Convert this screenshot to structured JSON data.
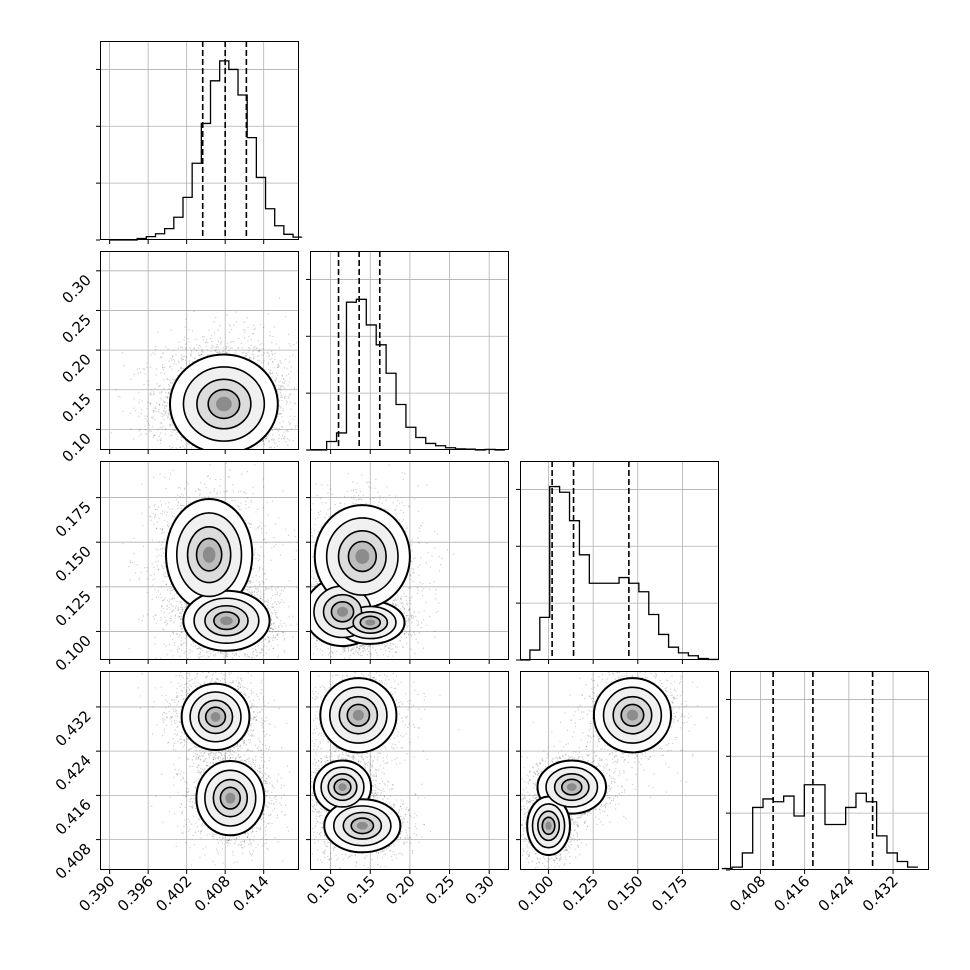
{
  "chart_data": {
    "type": "corner",
    "panels": [
      {
        "row": 0,
        "col": 0,
        "kind": "hist",
        "var": 0,
        "quantiles": [
          0.4045,
          0.408,
          0.4113
        ],
        "hist": {
          "range": [
            0.39,
            0.42
          ],
          "counts": [
            0,
            0,
            0,
            0.5,
            1.2,
            2.2,
            4,
            8,
            15,
            27,
            41,
            56,
            63,
            60,
            51,
            36,
            22,
            11,
            5,
            2,
            1
          ]
        }
      },
      {
        "row": 1,
        "col": 1,
        "kind": "hist",
        "var": 1,
        "quantiles": [
          0.11,
          0.136,
          0.162
        ],
        "hist": {
          "range": [
            0.07,
            0.32
          ],
          "counts": [
            0,
            0,
            3,
            6,
            52,
            53,
            44,
            37,
            27,
            16,
            8,
            4.4,
            2.3,
            1.5,
            0.8,
            0.4,
            0.3,
            0,
            0.2,
            0
          ]
        }
      },
      {
        "row": 2,
        "col": 2,
        "kind": "hist",
        "var": 2,
        "quantiles": [
          0.102,
          0.114,
          0.145
        ],
        "hist": {
          "range": [
            0.084,
            0.195
          ],
          "counts": [
            0,
            3.5,
            15,
            61,
            59,
            49,
            37,
            27,
            27,
            27,
            29,
            27,
            24,
            16,
            9,
            4.5,
            2.5,
            1.5,
            0.5,
            0.2
          ]
        }
      },
      {
        "row": 3,
        "col": 3,
        "kind": "hist",
        "var": 3,
        "quantiles": [
          0.4103,
          0.4175,
          0.4283
        ],
        "hist": {
          "range": [
            0.401,
            0.4365
          ],
          "counts": [
            0.5,
            1,
            6,
            22,
            25,
            24,
            26,
            19,
            30,
            30,
            16,
            16,
            22,
            27,
            24,
            12,
            6,
            3,
            1
          ]
        }
      },
      {
        "row": 1,
        "col": 0,
        "kind": "density",
        "x": 0,
        "y": 1
      },
      {
        "row": 2,
        "col": 0,
        "kind": "density",
        "x": 0,
        "y": 2
      },
      {
        "row": 2,
        "col": 1,
        "kind": "density",
        "x": 1,
        "y": 2
      },
      {
        "row": 3,
        "col": 0,
        "kind": "density",
        "x": 0,
        "y": 3
      },
      {
        "row": 3,
        "col": 1,
        "kind": "density",
        "x": 1,
        "y": 3
      },
      {
        "row": 3,
        "col": 2,
        "kind": "density",
        "x": 2,
        "y": 3
      }
    ],
    "axes": [
      {
        "name": "",
        "lim": [
          0.3885,
          0.4195
        ],
        "ticks": [
          0.39,
          0.396,
          0.402,
          0.408,
          0.414
        ],
        "tick_labels": [
          "0.390",
          "0.396",
          "0.402",
          "0.408",
          "0.414"
        ]
      },
      {
        "name": "",
        "lim": [
          0.074,
          0.325
        ],
        "ticks": [
          0.1,
          0.15,
          0.2,
          0.25,
          0.3
        ],
        "tick_labels": [
          "0.10",
          "0.15",
          "0.20",
          "0.25",
          "0.30"
        ]
      },
      {
        "name": "",
        "lim": [
          0.084,
          0.1955
        ],
        "ticks": [
          0.1,
          0.125,
          0.15,
          0.175
        ],
        "tick_labels": [
          "0.100",
          "0.125",
          "0.150",
          "0.175"
        ]
      },
      {
        "name": "",
        "lim": [
          0.4025,
          0.4385
        ],
        "ticks": [
          0.408,
          0.416,
          0.424,
          0.432
        ],
        "tick_labels": [
          "0.408",
          "0.416",
          "0.424",
          "0.432"
        ]
      }
    ],
    "hist_ylim": [
      0,
      70
    ],
    "grid": true,
    "contour_colors": {
      "line": "#000000",
      "fill_levels": [
        "#ffffff",
        "#f0f0f0",
        "#dcdcdc",
        "#bdbdbd",
        "#8c8c8c",
        "#404040"
      ]
    },
    "modes": [
      {
        "panel": "1-0",
        "centers": [
          [
            0.4078,
            0.132
          ]
        ],
        "sd": [
          [
            0.0035,
            0.026
          ]
        ],
        "points": 3500
      },
      {
        "panel": "2-0",
        "centers": [
          [
            0.4055,
            0.143
          ],
          [
            0.4082,
            0.106
          ]
        ],
        "sd": [
          [
            0.0028,
            0.013
          ],
          [
            0.0028,
            0.007
          ]
        ],
        "points": 3500
      },
      {
        "panel": "2-1",
        "centers": [
          [
            0.115,
            0.111
          ],
          [
            0.15,
            0.105
          ],
          [
            0.14,
            0.142
          ]
        ],
        "sd": [
          [
            0.02,
            0.008
          ],
          [
            0.018,
            0.005
          ],
          [
            0.025,
            0.012
          ]
        ],
        "points": 3500
      },
      {
        "panel": "3-0",
        "centers": [
          [
            0.4065,
            0.4302
          ],
          [
            0.4088,
            0.4155
          ]
        ],
        "sd": [
          [
            0.0022,
            0.0025
          ],
          [
            0.0022,
            0.0028
          ]
        ],
        "points": 3500
      },
      {
        "panel": "3-1",
        "centers": [
          [
            0.135,
            0.4305
          ],
          [
            0.115,
            0.4175
          ],
          [
            0.14,
            0.4105
          ]
        ],
        "sd": [
          [
            0.02,
            0.0028
          ],
          [
            0.015,
            0.002
          ],
          [
            0.02,
            0.002
          ]
        ],
        "points": 3500
      },
      {
        "panel": "3-2",
        "centers": [
          [
            0.147,
            0.4305
          ],
          [
            0.113,
            0.4175
          ],
          [
            0.1,
            0.4105
          ]
        ],
        "sd": [
          [
            0.009,
            0.0028
          ],
          [
            0.008,
            0.002
          ],
          [
            0.005,
            0.0022
          ]
        ],
        "points": 3500
      }
    ]
  }
}
